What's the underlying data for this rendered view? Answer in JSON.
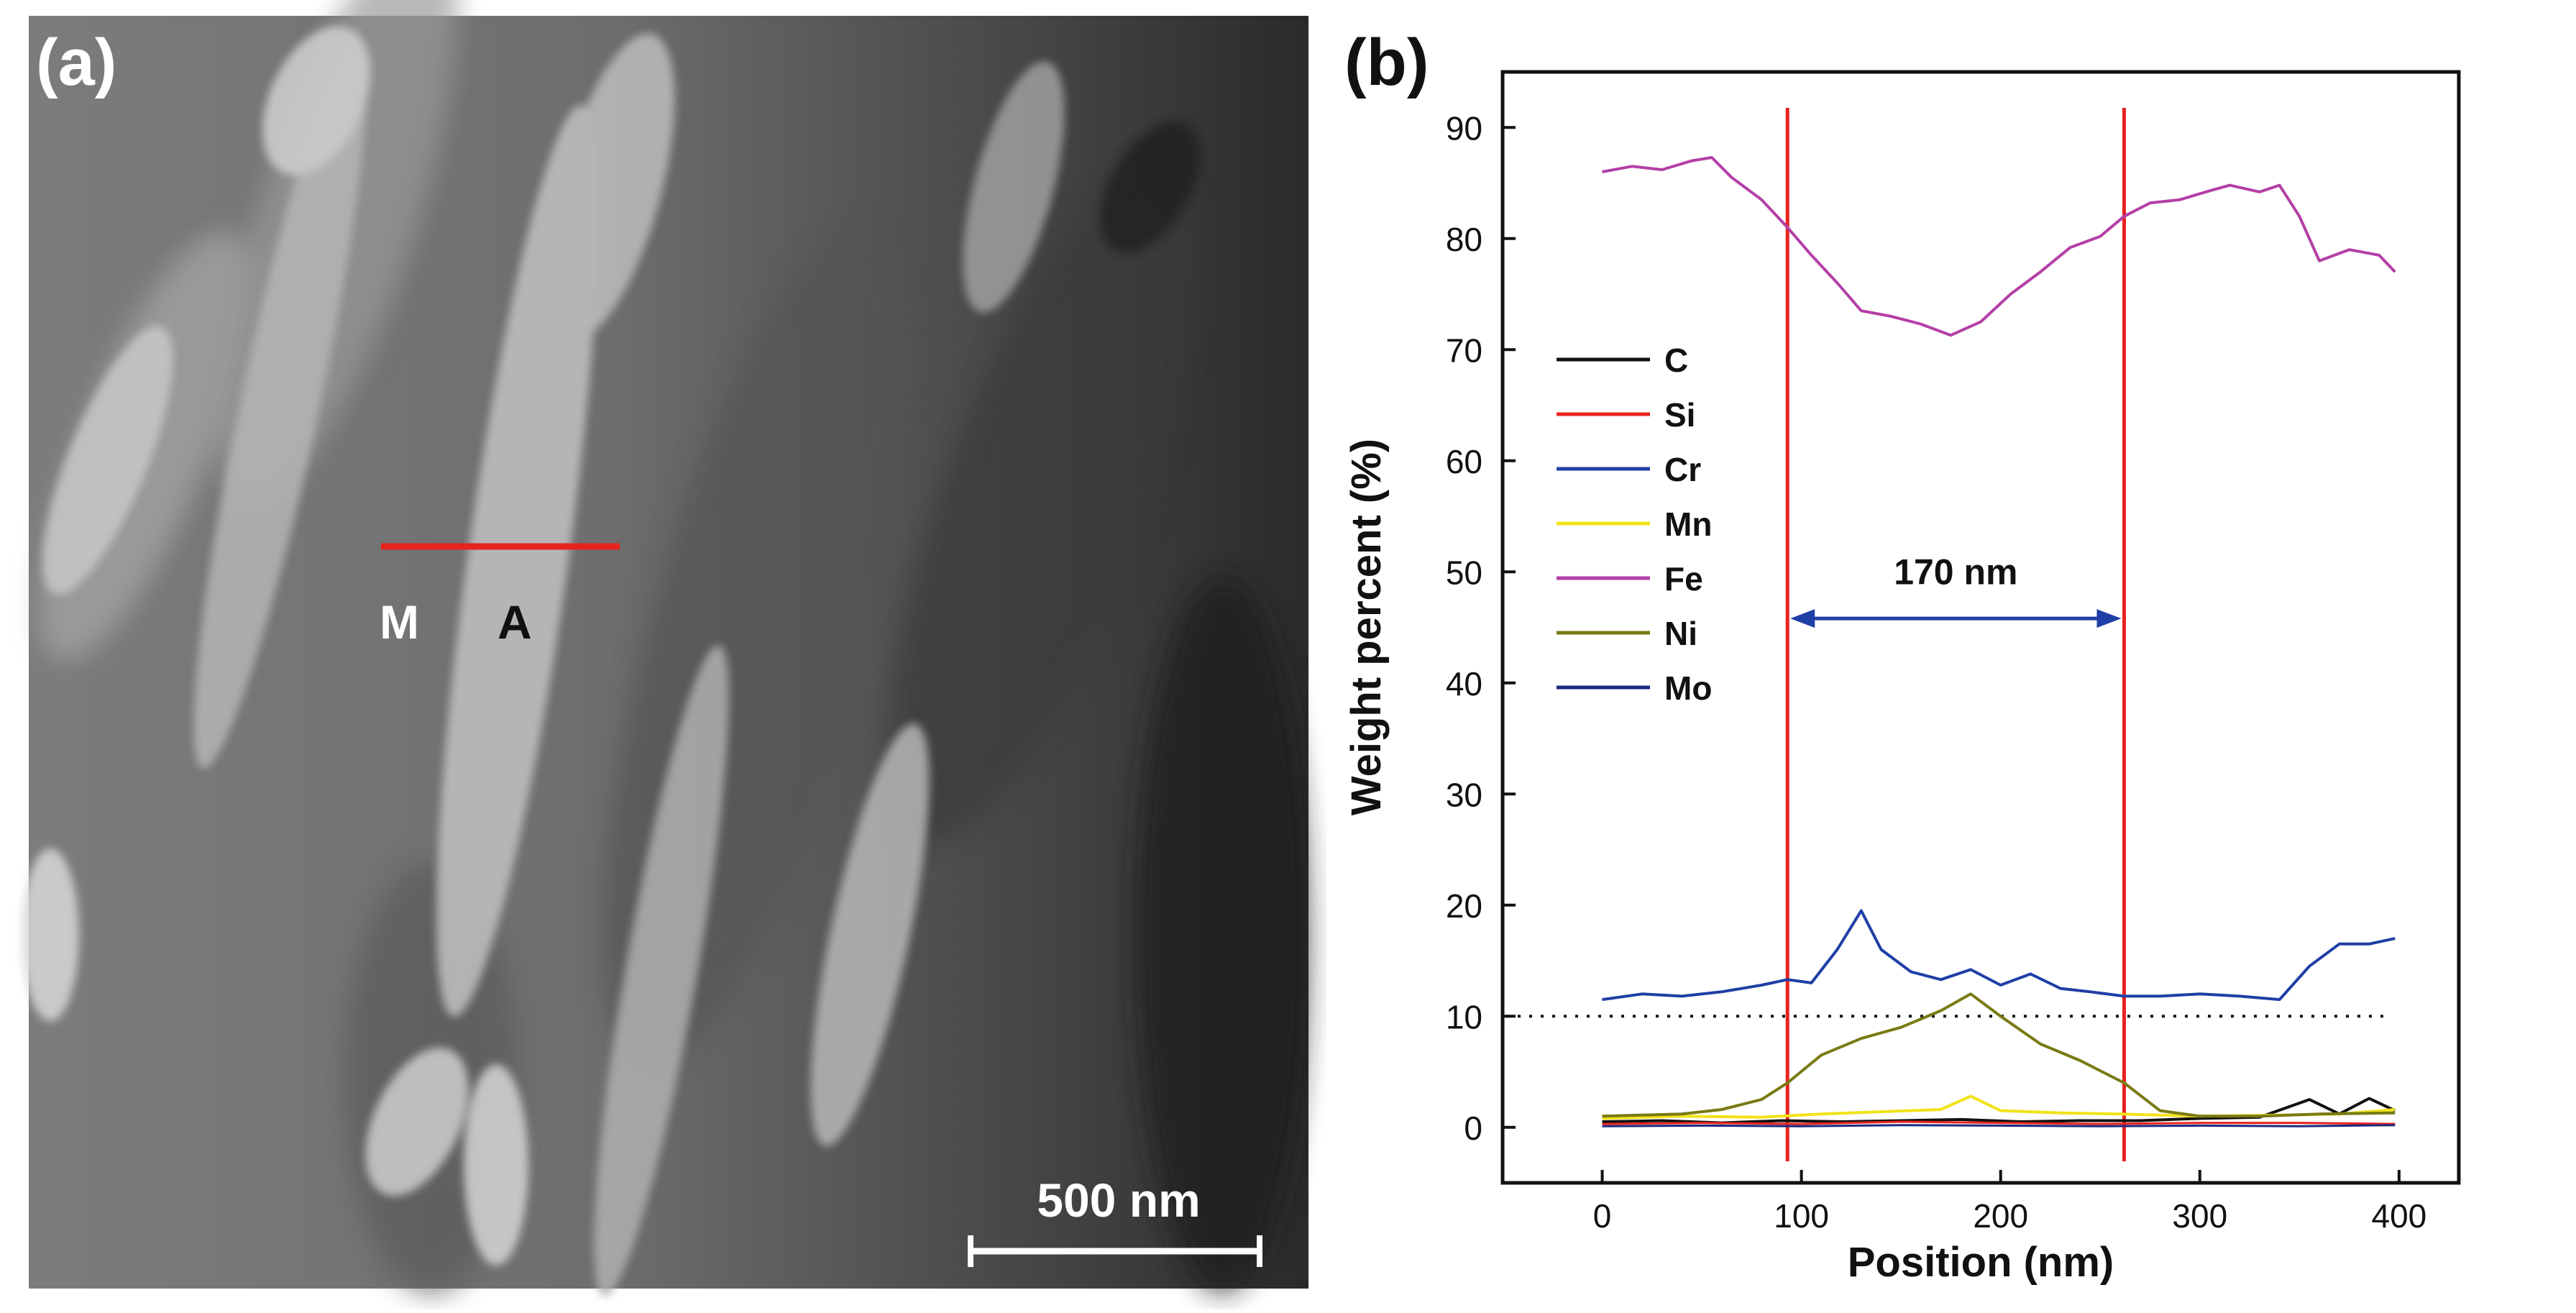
{
  "panel_a": {
    "label": "(a)",
    "marker_left": "M",
    "marker_right": "A",
    "scale_bar_label": "500 nm",
    "line_color": "#e8231f"
  },
  "panel_b": {
    "label": "(b)",
    "span_label": "170 nm"
  },
  "chart_data": {
    "type": "line",
    "xlabel": "Position (nm)",
    "ylabel": "Weight percent (%)",
    "xlim": [
      -50,
      430
    ],
    "ylim": [
      -5,
      95
    ],
    "xticks": [
      0,
      100,
      200,
      300,
      400
    ],
    "yticks": [
      0,
      10,
      20,
      30,
      40,
      50,
      60,
      70,
      80,
      90
    ],
    "grid": false,
    "legend_position": "center-left",
    "reference_lines": {
      "vertical_x": [
        93,
        262
      ],
      "vertical_color": "#e8231f",
      "horizontal_dotted_y": 10
    },
    "series": [
      {
        "name": "C",
        "color": "#111111",
        "x": [
          0,
          30,
          60,
          90,
          120,
          150,
          180,
          210,
          240,
          270,
          300,
          330,
          355,
          370,
          385,
          398
        ],
        "y": [
          0.5,
          0.6,
          0.4,
          0.6,
          0.5,
          0.6,
          0.7,
          0.5,
          0.6,
          0.6,
          0.8,
          0.9,
          2.5,
          1.2,
          2.6,
          1.5
        ]
      },
      {
        "name": "Si",
        "color": "#e8231f",
        "x": [
          0,
          50,
          100,
          150,
          200,
          250,
          300,
          350,
          398
        ],
        "y": [
          0.3,
          0.4,
          0.3,
          0.5,
          0.4,
          0.3,
          0.4,
          0.4,
          0.3
        ]
      },
      {
        "name": "Cr",
        "color": "#1f3fa6",
        "x": [
          0,
          20,
          40,
          60,
          80,
          93,
          105,
          118,
          130,
          140,
          155,
          170,
          185,
          200,
          215,
          230,
          245,
          262,
          280,
          300,
          320,
          340,
          355,
          370,
          385,
          398
        ],
        "y": [
          11.5,
          12,
          11.8,
          12.2,
          12.8,
          13.3,
          13,
          16,
          19.5,
          16,
          14,
          13.3,
          14.2,
          12.8,
          13.8,
          12.5,
          12.2,
          11.8,
          11.8,
          12,
          11.8,
          11.5,
          14.5,
          16.5,
          16.5,
          17
        ]
      },
      {
        "name": "Mn",
        "color": "#f2e21a",
        "x": [
          0,
          40,
          80,
          110,
          140,
          170,
          185,
          200,
          230,
          260,
          300,
          340,
          370,
          398
        ],
        "y": [
          0.8,
          1.0,
          0.9,
          1.2,
          1.4,
          1.6,
          2.8,
          1.5,
          1.3,
          1.2,
          1.0,
          1.1,
          1.2,
          1.6
        ]
      },
      {
        "name": "Fe",
        "color": "#b43fa6",
        "x": [
          0,
          15,
          30,
          45,
          55,
          65,
          80,
          93,
          105,
          118,
          130,
          145,
          160,
          175,
          190,
          205,
          220,
          235,
          250,
          262,
          275,
          290,
          305,
          315,
          330,
          340,
          350,
          360,
          375,
          390,
          398
        ],
        "y": [
          86,
          86.5,
          86.2,
          87,
          87.3,
          85.5,
          83.5,
          81,
          78.5,
          76,
          73.5,
          73,
          72.3,
          71.3,
          72.5,
          75,
          77,
          79.2,
          80.2,
          82,
          83.2,
          83.5,
          84.3,
          84.8,
          84.2,
          84.8,
          82,
          78,
          79,
          78.5,
          77
        ]
      },
      {
        "name": "Ni",
        "color": "#7a7a14",
        "x": [
          0,
          40,
          60,
          80,
          93,
          110,
          130,
          150,
          170,
          185,
          200,
          220,
          240,
          262,
          280,
          300,
          330,
          360,
          398
        ],
        "y": [
          1,
          1.2,
          1.6,
          2.5,
          4,
          6.5,
          8,
          9,
          10.5,
          12,
          10,
          7.5,
          6,
          4,
          1.5,
          1,
          1,
          1.2,
          1.3
        ]
      },
      {
        "name": "Mo",
        "color": "#1c2a80",
        "x": [
          0,
          50,
          100,
          150,
          200,
          250,
          300,
          350,
          398
        ],
        "y": [
          0.1,
          0.15,
          0.1,
          0.2,
          0.15,
          0.1,
          0.15,
          0.1,
          0.2
        ]
      }
    ]
  }
}
